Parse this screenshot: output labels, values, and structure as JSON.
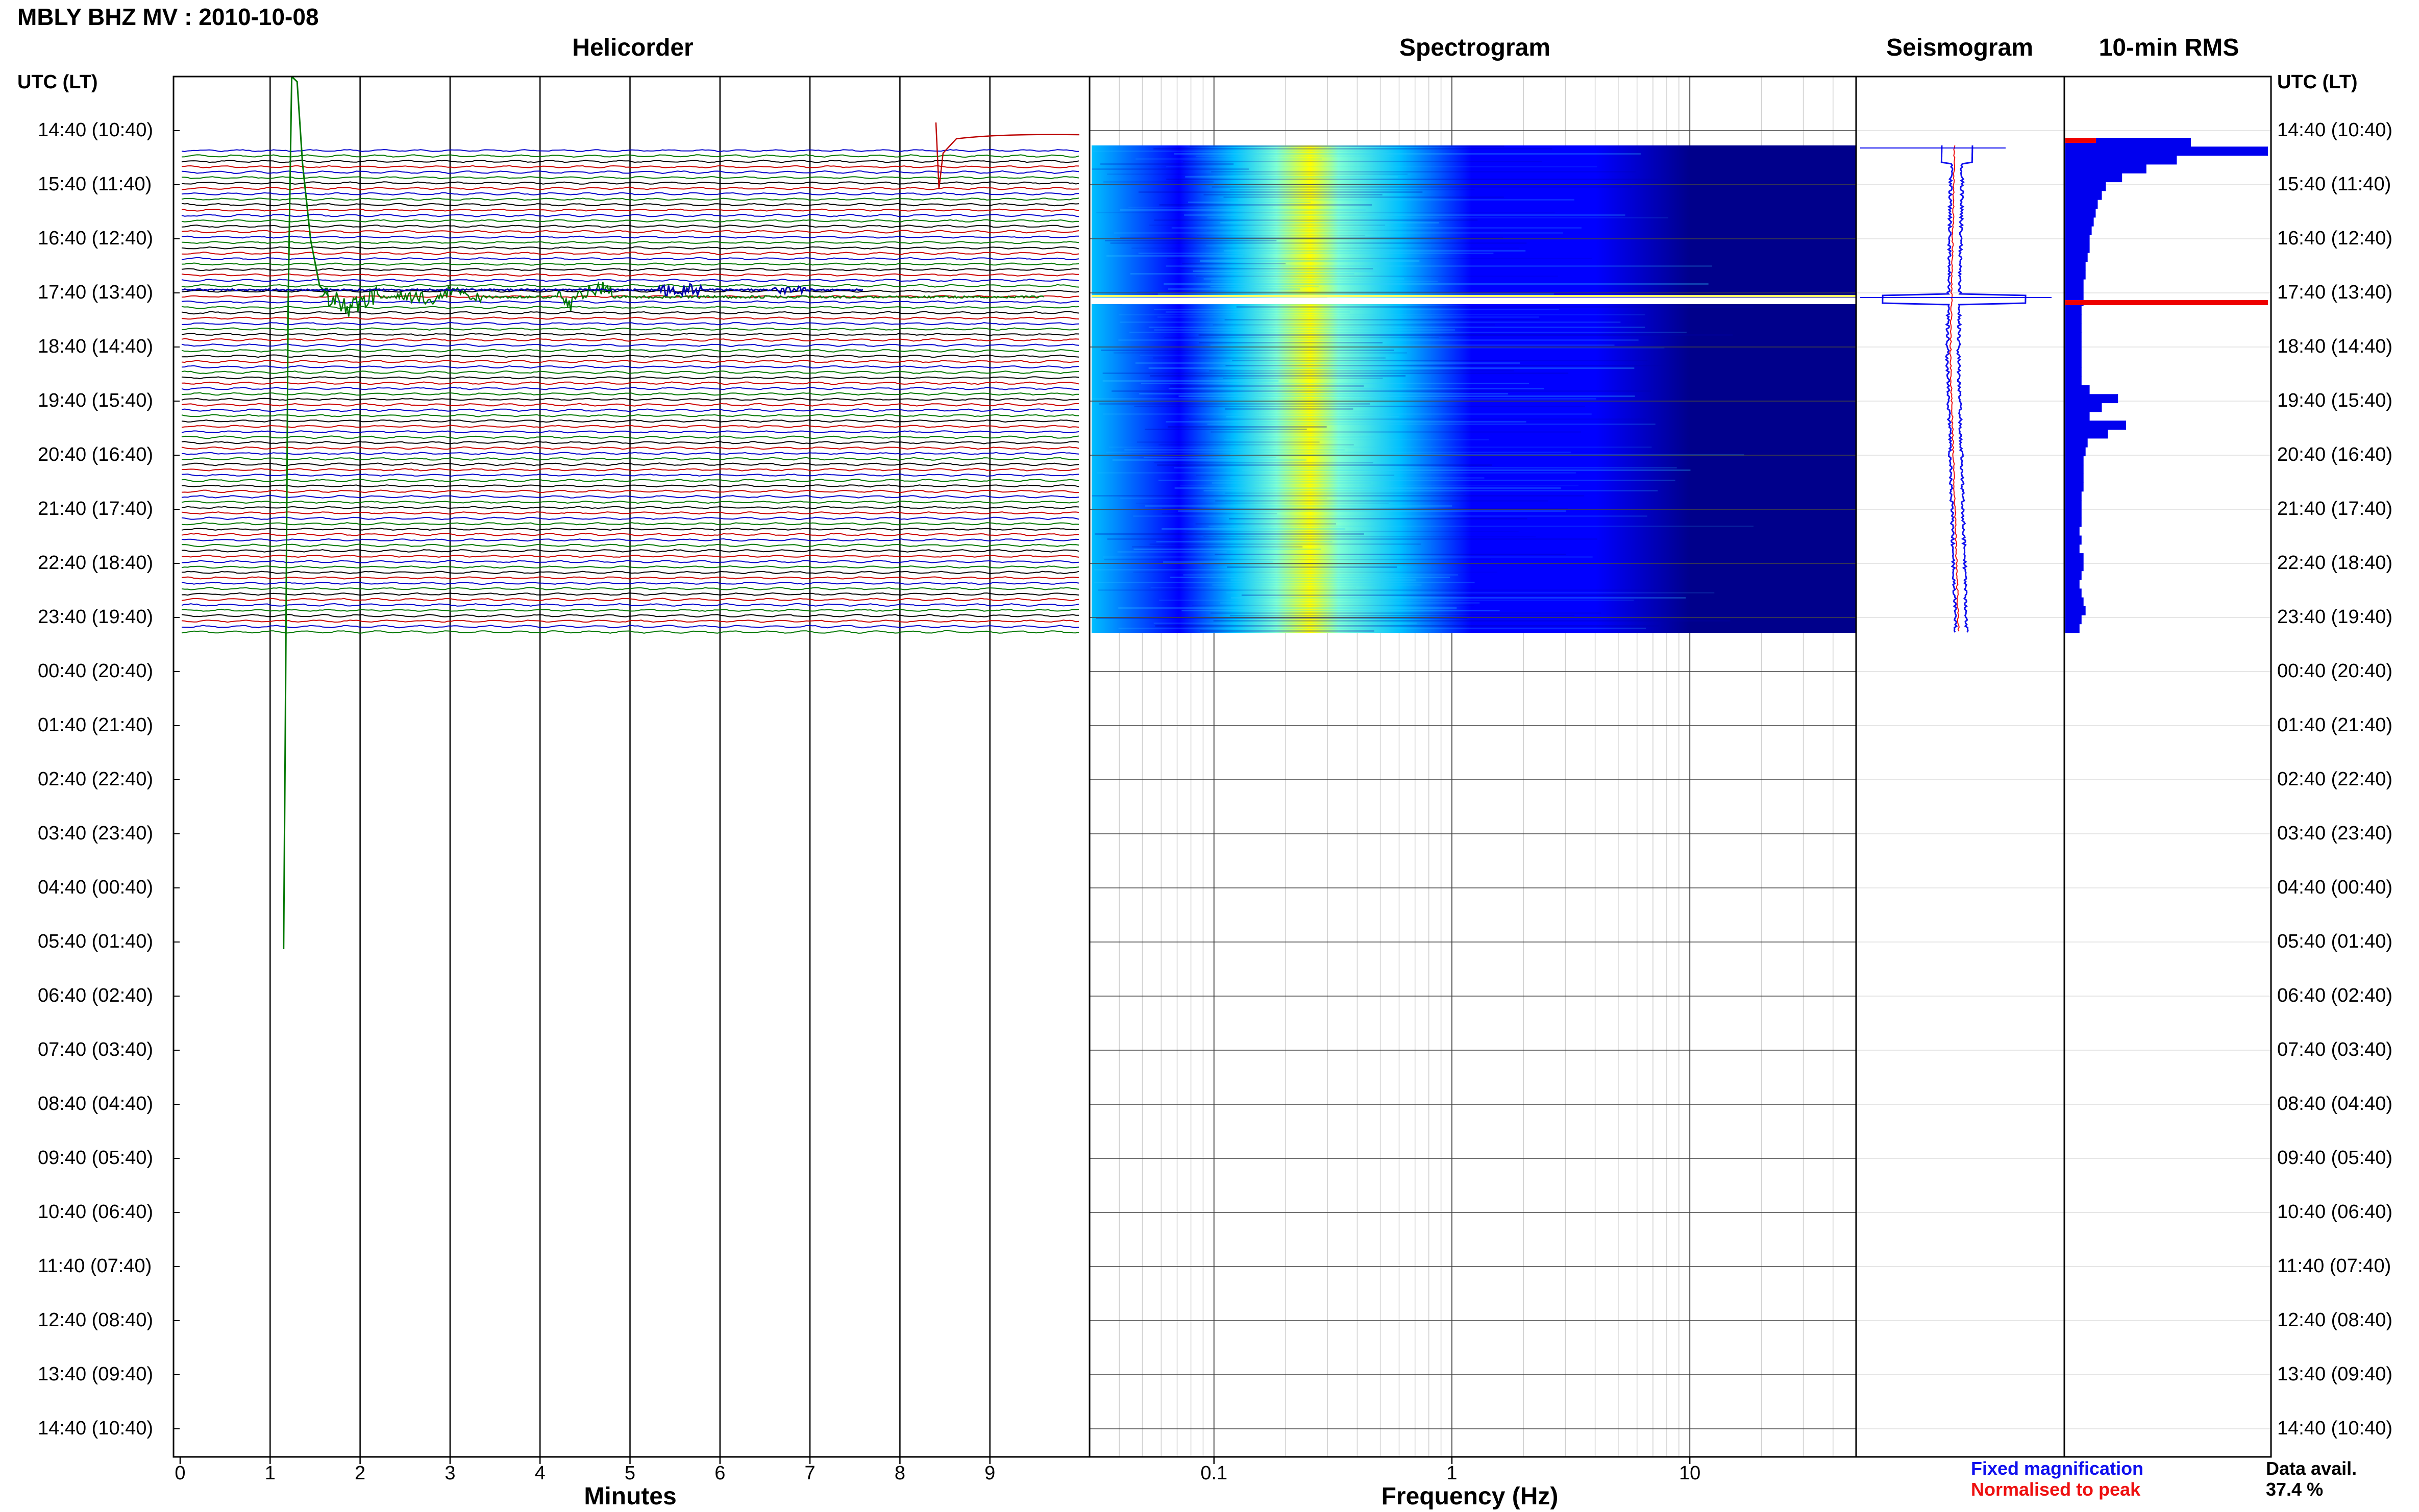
{
  "header": {
    "title": "MBLY BHZ MV : 2010-10-08"
  },
  "panels": {
    "helicorder_title": "Helicorder",
    "spectrogram_title": "Spectrogram",
    "seismogram_title": "Seismogram",
    "rms_title": "10-min RMS"
  },
  "axes": {
    "left_header": "UTC (LT)",
    "right_header": "UTC (LT)",
    "helicorder_xlabel": "Minutes",
    "spectrogram_xlabel": "Frequency (Hz)",
    "minute_ticks": [
      "0",
      "1",
      "2",
      "3",
      "4",
      "5",
      "6",
      "7",
      "8",
      "9"
    ],
    "freq_ticks": [
      "0.1",
      "1",
      "10"
    ]
  },
  "legend": {
    "fixed": "Fixed magnification",
    "normalised": "Normalised to peak",
    "fixed_color": "#1010ee",
    "normalised_color": "#ee1010"
  },
  "availability": {
    "label": "Data avail.",
    "value": "37.4 %"
  },
  "chart_data": [
    {
      "type": "line",
      "panel": "helicorder",
      "title": "Helicorder",
      "xlabel": "Minutes",
      "xlim": [
        0,
        10
      ],
      "row_labels": [
        "14:40 (10:40)",
        "15:40 (11:40)",
        "16:40 (12:40)",
        "17:40 (13:40)",
        "18:40 (14:40)",
        "19:40 (15:40)",
        "20:40 (16:40)",
        "21:40 (17:40)",
        "22:40 (18:40)",
        "23:40 (19:40)",
        "00:40 (20:40)",
        "01:40 (21:40)",
        "02:40 (22:40)",
        "03:40 (23:40)",
        "04:40 (00:40)",
        "05:40 (01:40)",
        "06:40 (02:40)",
        "07:40 (03:40)",
        "08:40 (04:40)",
        "09:40 (05:40)",
        "10:40 (06:40)",
        "11:40 (07:40)",
        "12:40 (08:40)",
        "13:40 (09:40)",
        "14:40 (10:40)"
      ],
      "trace_colors": [
        "#000000",
        "#cc0000",
        "#0000cc",
        "#007700"
      ],
      "data_hours": 9.2
    },
    {
      "type": "heatmap",
      "panel": "spectrogram",
      "title": "Spectrogram",
      "xlabel": "Frequency (Hz)",
      "xscale": "log",
      "xlim": [
        0.03,
        50
      ],
      "peak_band_hz": [
        0.22,
        0.32
      ],
      "colormap": [
        "#00008b",
        "#0000ff",
        "#00bfff",
        "#7fffd4",
        "#ffff00"
      ]
    },
    {
      "type": "line",
      "panel": "seismogram",
      "title": "Seismogram",
      "series": [
        {
          "name": "Fixed magnification",
          "color": "#1010ee"
        },
        {
          "name": "Normalised to peak",
          "color": "#ee1010"
        }
      ]
    },
    {
      "type": "bar",
      "panel": "rms",
      "title": "10-min RMS",
      "orientation": "horizontal",
      "bar_color": "#0000ee",
      "peak_color": "#ee0000",
      "values": [
        0.62,
        1.0,
        0.55,
        0.4,
        0.28,
        0.2,
        0.18,
        0.16,
        0.15,
        0.14,
        0.13,
        0.12,
        0.12,
        0.11,
        0.1,
        0.1,
        0.09,
        0.09,
        0.09,
        0.08,
        0.08,
        0.08,
        0.08,
        0.08,
        0.08,
        0.08,
        0.08,
        0.08,
        0.12,
        0.26,
        0.18,
        0.12,
        0.3,
        0.21,
        0.11,
        0.1,
        0.09,
        0.09,
        0.09,
        0.09,
        0.08,
        0.08,
        0.08,
        0.08,
        0.07,
        0.08,
        0.07,
        0.09,
        0.09,
        0.08,
        0.07,
        0.08,
        0.09,
        0.1,
        0.08,
        0.07
      ]
    }
  ]
}
